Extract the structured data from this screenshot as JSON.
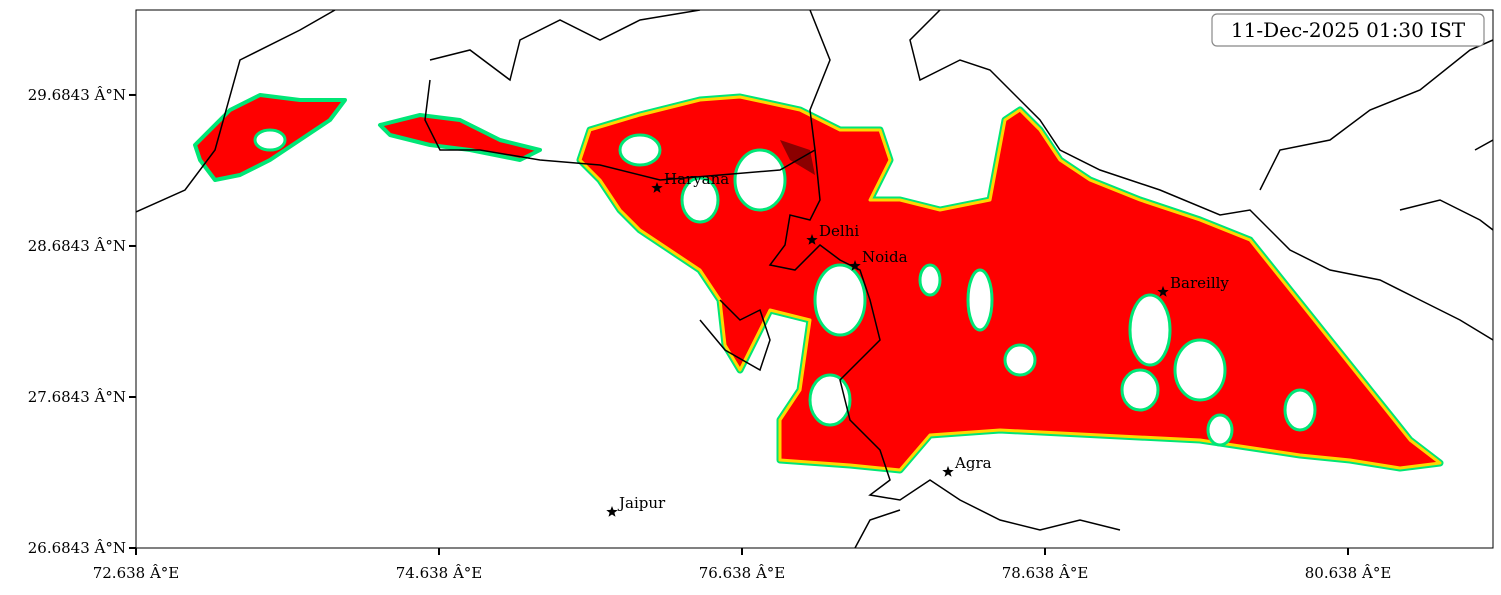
{
  "map": {
    "timestamp": "11-Dec-2025 01:30 IST",
    "xlim": [
      72.638,
      81.595
    ],
    "ylim": [
      26.6843,
      30.247
    ],
    "xticks": [
      {
        "value": 72.638,
        "label": "72.638 Â°E"
      },
      {
        "value": 74.638,
        "label": "74.638 Â°E"
      },
      {
        "value": 76.638,
        "label": "76.638 Â°E"
      },
      {
        "value": 78.638,
        "label": "78.638 Â°E"
      },
      {
        "value": 80.638,
        "label": "80.638 Â°E"
      }
    ],
    "yticks": [
      {
        "value": 26.6843,
        "label": "26.6843 Â°N"
      },
      {
        "value": 27.6843,
        "label": "27.6843 Â°N"
      },
      {
        "value": 28.6843,
        "label": "28.6843 Â°N"
      },
      {
        "value": 29.6843,
        "label": "29.6843 Â°N"
      }
    ],
    "cities": [
      {
        "name": "Haryana",
        "lon": 76.077,
        "lat": 29.068
      },
      {
        "name": "Delhi",
        "lon": 77.1,
        "lat": 28.724
      },
      {
        "name": "Noida",
        "lon": 77.384,
        "lat": 28.552
      },
      {
        "name": "Bareilly",
        "lon": 79.417,
        "lat": 28.38
      },
      {
        "name": "Agra",
        "lon": 77.998,
        "lat": 27.188
      },
      {
        "name": "Jaipur",
        "lon": 75.78,
        "lat": 26.923
      }
    ]
  }
}
